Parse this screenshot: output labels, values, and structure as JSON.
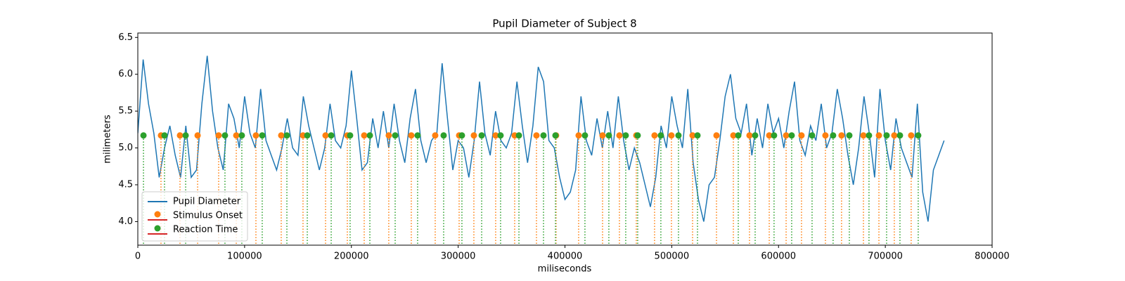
{
  "chart_data": {
    "type": "line",
    "title": "Pupil Diameter of Subject 8",
    "xlabel": "miliseconds",
    "ylabel": "milimeters",
    "xlim": [
      0,
      800000
    ],
    "ylim": [
      3.68,
      6.56
    ],
    "xticks": [
      0,
      100000,
      200000,
      300000,
      400000,
      500000,
      600000,
      700000,
      800000
    ],
    "yticks": [
      {
        "value": 4,
        "label": "4.0"
      },
      4.5,
      {
        "value": 5,
        "label": "5.0"
      },
      5.5,
      {
        "value": 6,
        "label": "6.0"
      },
      6.5
    ],
    "legend": "lower left",
    "series": [
      {
        "name": "Pupil Diameter",
        "type": "line",
        "color": "#1f77b4",
        "x": [
          0,
          5000,
          10000,
          15000,
          20000,
          25000,
          30000,
          35000,
          40000,
          45000,
          50000,
          55000,
          60000,
          65000,
          70000,
          75000,
          80000,
          85000,
          90000,
          95000,
          100000,
          105000,
          110000,
          115000,
          120000,
          125000,
          130000,
          135000,
          140000,
          145000,
          150000,
          155000,
          160000,
          165000,
          170000,
          175000,
          180000,
          185000,
          190000,
          195000,
          200000,
          205000,
          210000,
          215000,
          220000,
          225000,
          230000,
          235000,
          240000,
          245000,
          250000,
          255000,
          260000,
          265000,
          270000,
          275000,
          280000,
          285000,
          290000,
          295000,
          300000,
          305000,
          310000,
          315000,
          320000,
          325000,
          330000,
          335000,
          340000,
          345000,
          350000,
          355000,
          360000,
          365000,
          370000,
          375000,
          380000,
          385000,
          390000,
          395000,
          400000,
          405000,
          410000,
          415000,
          420000,
          425000,
          430000,
          435000,
          440000,
          445000,
          450000,
          455000,
          460000,
          465000,
          470000,
          475000,
          480000,
          485000,
          490000,
          495000,
          500000,
          505000,
          510000,
          515000,
          520000,
          525000,
          530000,
          535000,
          540000,
          545000,
          550000,
          555000,
          560000,
          565000,
          570000,
          575000,
          580000,
          585000,
          590000,
          595000,
          600000,
          605000,
          610000,
          615000,
          620000,
          625000,
          630000,
          635000,
          640000,
          645000,
          650000,
          655000,
          660000,
          665000,
          670000,
          675000,
          680000,
          685000,
          690000,
          695000,
          700000,
          705000,
          710000,
          715000,
          720000,
          725000,
          730000,
          735000,
          740000,
          745000,
          750000,
          755000
        ],
        "values": [
          5.2,
          6.2,
          5.6,
          5.2,
          4.6,
          5.0,
          5.3,
          4.9,
          4.6,
          5.3,
          4.6,
          4.7,
          5.6,
          6.25,
          5.5,
          5.0,
          4.7,
          5.6,
          5.4,
          5.0,
          5.7,
          5.2,
          5.0,
          5.8,
          5.1,
          4.9,
          4.7,
          5.0,
          5.4,
          5.0,
          4.9,
          5.7,
          5.3,
          5.0,
          4.7,
          5.0,
          5.6,
          5.1,
          5.0,
          5.3,
          6.05,
          5.4,
          4.7,
          4.8,
          5.4,
          5.0,
          5.5,
          5.0,
          5.6,
          5.1,
          4.8,
          5.4,
          5.8,
          5.1,
          4.8,
          5.1,
          5.2,
          6.15,
          5.4,
          4.7,
          5.1,
          5.0,
          4.6,
          5.1,
          5.9,
          5.2,
          4.9,
          5.5,
          5.1,
          5.0,
          5.2,
          5.9,
          5.3,
          4.8,
          5.3,
          6.1,
          5.9,
          5.1,
          5.0,
          4.6,
          4.3,
          4.4,
          4.7,
          5.7,
          5.1,
          4.9,
          5.4,
          5.0,
          5.5,
          5.0,
          5.7,
          5.1,
          4.7,
          5.0,
          4.8,
          4.5,
          4.2,
          4.6,
          5.3,
          5.0,
          5.7,
          5.3,
          5.0,
          5.8,
          4.8,
          4.3,
          4.0,
          4.5,
          4.6,
          5.1,
          5.7,
          6.0,
          5.4,
          5.2,
          5.6,
          4.9,
          5.4,
          5.0,
          5.6,
          5.2,
          5.4,
          5.0,
          5.5,
          5.9,
          5.1,
          4.9,
          5.3,
          5.1,
          5.6,
          5.0,
          5.2,
          5.8,
          5.4,
          4.9,
          4.5,
          5.0,
          5.7,
          5.2,
          4.6,
          5.8,
          5.1,
          4.7,
          5.4,
          5.0,
          4.8,
          4.6,
          5.6,
          4.4,
          4.0,
          4.7,
          4.9,
          5.1
        ]
      },
      {
        "name": "Stimulus Onset",
        "type": "stem",
        "color": "#ff7f0e",
        "baseline_color": "#d62728",
        "x": [
          21700,
          39500,
          56000,
          75700,
          92200,
          110600,
          134300,
          154700,
          175800,
          196200,
          212000,
          235000,
          256100,
          278500,
          300900,
          314700,
          335100,
          352900,
          373300,
          391700,
          412800,
          435200,
          451000,
          466800,
          483900,
          499700,
          519500,
          541900,
          557700,
          572800,
          591300,
          607100,
          621500,
          643900,
          659000,
          679500,
          694000,
          708400,
          724200
        ],
        "values": [
          5.17,
          5.17,
          5.17,
          5.17,
          5.17,
          5.17,
          5.17,
          5.17,
          5.17,
          5.17,
          5.17,
          5.17,
          5.17,
          5.17,
          5.17,
          5.17,
          5.17,
          5.17,
          5.17,
          5.17,
          5.17,
          5.17,
          5.17,
          5.17,
          5.17,
          5.17,
          5.17,
          5.17,
          5.17,
          5.17,
          5.17,
          5.17,
          5.17,
          5.17,
          5.17,
          5.17,
          5.17,
          5.17,
          5.17
        ]
      },
      {
        "name": "Reaction Time",
        "type": "stem",
        "color": "#2ca02c",
        "baseline_color": "#d62728",
        "x": [
          5300,
          25000,
          44800,
          81600,
          97400,
          116500,
          139600,
          158700,
          181100,
          198800,
          217300,
          241000,
          262000,
          286400,
          303500,
          322000,
          339700,
          356900,
          379900,
          391100,
          418700,
          441100,
          456900,
          468100,
          489800,
          506300,
          524100,
          562300,
          578100,
          595800,
          612300,
          631400,
          651100,
          666300,
          684700,
          701200,
          713700,
          730800
        ],
        "values": [
          5.17,
          5.17,
          5.17,
          5.17,
          5.17,
          5.17,
          5.17,
          5.17,
          5.17,
          5.17,
          5.17,
          5.17,
          5.17,
          5.17,
          5.17,
          5.17,
          5.17,
          5.17,
          5.17,
          5.17,
          5.17,
          5.17,
          5.17,
          5.17,
          5.17,
          5.17,
          5.17,
          5.17,
          5.17,
          5.17,
          5.17,
          5.17,
          5.17,
          5.17,
          5.17,
          5.17,
          5.17,
          5.17
        ]
      }
    ]
  }
}
